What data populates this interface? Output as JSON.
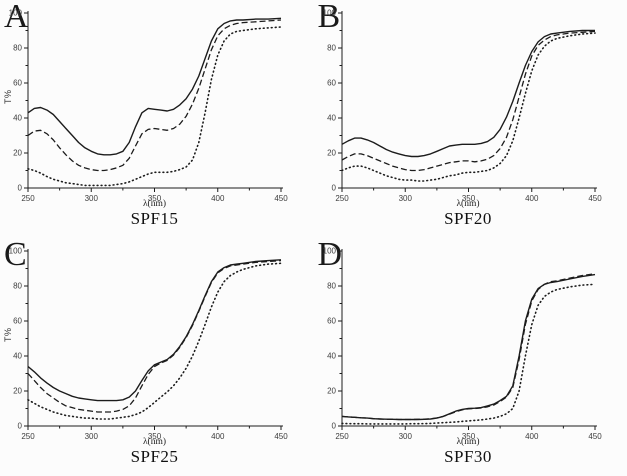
{
  "figure": {
    "background": "#fcfcfc",
    "line_color": "#1c1c1c",
    "text_color": "#3d3d3d"
  },
  "chart_data": [
    {
      "type": "line",
      "panel_label": "A",
      "caption": "SPF15",
      "xlabel": "λ(nm)",
      "ylabel": "T%",
      "xlim": [
        250,
        450
      ],
      "ylim": [
        0,
        100
      ],
      "xticks": [
        250,
        300,
        350,
        400,
        450
      ],
      "xticks_minor": [
        275,
        325,
        375,
        425
      ],
      "yticks": [
        0,
        20,
        40,
        60,
        80,
        100
      ],
      "yticks_minor": [
        10,
        30,
        50,
        70,
        90
      ],
      "grid": false,
      "legend": null,
      "x": [
        250,
        255,
        260,
        265,
        270,
        275,
        280,
        285,
        290,
        295,
        300,
        305,
        310,
        315,
        320,
        325,
        330,
        335,
        340,
        345,
        350,
        355,
        360,
        365,
        370,
        375,
        380,
        385,
        390,
        395,
        400,
        405,
        410,
        415,
        420,
        430,
        440,
        450
      ],
      "series": [
        {
          "name": "solid",
          "values": [
            43,
            45.5,
            46,
            44.5,
            42,
            38,
            34,
            30,
            26,
            23,
            21,
            19.5,
            19,
            19,
            19.5,
            21,
            26,
            35,
            43,
            45.5,
            45,
            44.5,
            44,
            45,
            47.5,
            51,
            56.5,
            64,
            74,
            84,
            91,
            94,
            95.5,
            96,
            96,
            96.5,
            96.5,
            97
          ]
        },
        {
          "name": "dashed",
          "values": [
            30,
            32.5,
            33,
            31,
            27.5,
            23,
            19,
            15.5,
            13,
            11.5,
            10.5,
            10,
            10,
            10.5,
            11.5,
            13,
            17,
            24,
            31,
            33.5,
            34,
            33.5,
            33,
            34,
            36.5,
            41,
            48,
            57,
            68,
            79,
            87,
            91,
            93,
            94,
            94.5,
            95,
            95.5,
            96
          ]
        },
        {
          "name": "dotted",
          "values": [
            11,
            10,
            8.5,
            6.5,
            5,
            4,
            3,
            2.5,
            2,
            1.5,
            1.5,
            1.5,
            1.5,
            1.5,
            2,
            2.5,
            3.5,
            5,
            6.5,
            8,
            9,
            9,
            9,
            9.5,
            10.5,
            12,
            16,
            26,
            43,
            62,
            76,
            84,
            88,
            89.5,
            90,
            91,
            91.5,
            92
          ]
        }
      ]
    },
    {
      "type": "line",
      "panel_label": "B",
      "caption": "SPF20",
      "xlabel": "λ(nm)",
      "ylabel": "",
      "xlim": [
        250,
        450
      ],
      "ylim": [
        0,
        100
      ],
      "xticks": [
        250,
        300,
        350,
        400,
        450
      ],
      "xticks_minor": [
        275,
        325,
        375,
        425
      ],
      "yticks": [
        0,
        20,
        40,
        60,
        80,
        100
      ],
      "yticks_minor": [
        10,
        30,
        50,
        70,
        90
      ],
      "grid": false,
      "legend": null,
      "x": [
        250,
        255,
        260,
        265,
        270,
        275,
        280,
        285,
        290,
        295,
        300,
        305,
        310,
        315,
        320,
        325,
        330,
        335,
        340,
        345,
        350,
        355,
        360,
        365,
        370,
        375,
        380,
        385,
        390,
        395,
        400,
        405,
        410,
        415,
        420,
        430,
        440,
        450
      ],
      "series": [
        {
          "name": "solid",
          "values": [
            25,
            27,
            28.5,
            28.5,
            27.5,
            26,
            24,
            22,
            20.5,
            19.5,
            18.5,
            18,
            18,
            18.5,
            19.5,
            21,
            22.5,
            24,
            24.5,
            25,
            25,
            25,
            25.5,
            26.5,
            29,
            33.5,
            40.5,
            49.5,
            60,
            70,
            78,
            83.5,
            86.5,
            88,
            88.5,
            89.5,
            90,
            90
          ]
        },
        {
          "name": "dashed",
          "values": [
            16,
            18,
            19.5,
            19.5,
            18.5,
            17,
            15.5,
            14,
            12.5,
            11.5,
            10.5,
            10,
            10,
            10.5,
            11.5,
            12.5,
            13.5,
            14.5,
            15,
            15.5,
            15.5,
            15,
            15.5,
            16.5,
            18.5,
            22.5,
            29,
            39,
            52,
            65,
            75.5,
            81.5,
            84.5,
            86.5,
            87.5,
            88.5,
            89,
            89.5
          ]
        },
        {
          "name": "dotted",
          "values": [
            10,
            11.5,
            12.5,
            12.5,
            11.5,
            10,
            8.5,
            7,
            6,
            5,
            4.5,
            4.5,
            4,
            4,
            4.5,
            5,
            6,
            7,
            7.5,
            8.5,
            9,
            9,
            9.5,
            10,
            11.5,
            14,
            18.5,
            27,
            40,
            54,
            67,
            76,
            81,
            84,
            85.5,
            87,
            88,
            88.5
          ]
        }
      ]
    },
    {
      "type": "line",
      "panel_label": "C",
      "caption": "SPF25",
      "xlabel": "λ(nm)",
      "ylabel": "T%",
      "xlim": [
        250,
        450
      ],
      "ylim": [
        0,
        100
      ],
      "xticks": [
        250,
        300,
        350,
        400,
        450
      ],
      "xticks_minor": [
        275,
        325,
        375,
        425
      ],
      "yticks": [
        0,
        20,
        40,
        60,
        80,
        100
      ],
      "yticks_minor": [
        10,
        30,
        50,
        70,
        90
      ],
      "grid": false,
      "legend": null,
      "x": [
        250,
        255,
        260,
        265,
        270,
        275,
        280,
        285,
        290,
        295,
        300,
        305,
        310,
        315,
        320,
        325,
        330,
        335,
        340,
        345,
        350,
        355,
        360,
        365,
        370,
        375,
        380,
        385,
        390,
        395,
        400,
        405,
        410,
        415,
        420,
        430,
        440,
        450
      ],
      "series": [
        {
          "name": "solid",
          "values": [
            34,
            31,
            27.5,
            24.5,
            22,
            20,
            18.5,
            17,
            16,
            15.5,
            15,
            14.5,
            14.5,
            14.5,
            14.5,
            15,
            16.5,
            20,
            26,
            31.5,
            35,
            36.5,
            38,
            41,
            45.5,
            51,
            58,
            66,
            74.5,
            82.5,
            88,
            90.5,
            92,
            92.5,
            93,
            94,
            94.5,
            95
          ]
        },
        {
          "name": "dashed",
          "values": [
            30,
            26,
            22,
            18.5,
            16,
            13.5,
            11.5,
            10.5,
            9.5,
            9,
            8.5,
            8,
            8,
            8,
            8.5,
            9.5,
            11.5,
            16,
            23,
            29.5,
            34,
            36,
            37.5,
            40.5,
            45,
            50.5,
            57.5,
            65.5,
            74,
            82,
            87.5,
            90,
            91.5,
            92,
            92.5,
            93.5,
            94,
            94.5
          ]
        },
        {
          "name": "dotted",
          "values": [
            15,
            13,
            11,
            9.5,
            8,
            7,
            6,
            5.5,
            5,
            4.5,
            4.5,
            4,
            4,
            4,
            4.5,
            5,
            5.5,
            6.5,
            8,
            10.5,
            13.5,
            16.5,
            19.5,
            23,
            27.5,
            33,
            40,
            48.5,
            58,
            68,
            76.5,
            82.5,
            86,
            88,
            89.5,
            91.5,
            92.5,
            93
          ]
        }
      ]
    },
    {
      "type": "line",
      "panel_label": "D",
      "caption": "SPF30",
      "xlabel": "λ(nm)",
      "ylabel": "",
      "xlim": [
        250,
        450
      ],
      "ylim": [
        0,
        100
      ],
      "xticks": [
        250,
        300,
        350,
        400,
        450
      ],
      "xticks_minor": [
        275,
        325,
        375,
        425
      ],
      "yticks": [
        0,
        20,
        40,
        60,
        80,
        100
      ],
      "yticks_minor": [
        10,
        30,
        50,
        70,
        90
      ],
      "grid": false,
      "legend": null,
      "x": [
        250,
        255,
        260,
        265,
        270,
        275,
        280,
        285,
        290,
        295,
        300,
        305,
        310,
        315,
        320,
        325,
        330,
        335,
        340,
        345,
        350,
        355,
        360,
        365,
        370,
        375,
        380,
        385,
        390,
        395,
        400,
        405,
        410,
        415,
        420,
        430,
        440,
        450
      ],
      "series": [
        {
          "name": "solid",
          "values": [
            5.5,
            5.2,
            5,
            4.7,
            4.5,
            4.2,
            4,
            3.9,
            3.8,
            3.7,
            3.7,
            3.7,
            3.7,
            3.8,
            4,
            4.5,
            5.5,
            7,
            8.5,
            9.5,
            10,
            10.2,
            10.5,
            11.5,
            12.5,
            14.5,
            17,
            23,
            40,
            60,
            72.5,
            78.5,
            81,
            82,
            82.5,
            84,
            85.5,
            86.5
          ]
        },
        {
          "name": "dashed",
          "values": [
            5.5,
            5.2,
            5,
            4.7,
            4.5,
            4.2,
            4,
            3.9,
            3.8,
            3.7,
            3.7,
            3.7,
            3.8,
            3.9,
            4.1,
            4.6,
            5.5,
            6.8,
            8.2,
            9.2,
            9.8,
            10,
            10.3,
            11,
            12,
            14,
            16.5,
            22,
            38,
            58,
            71.5,
            78,
            81,
            82.5,
            83,
            84.5,
            86,
            87
          ]
        },
        {
          "name": "dotted",
          "values": [
            1.5,
            1.4,
            1.3,
            1.3,
            1.2,
            1.2,
            1.2,
            1.2,
            1.2,
            1.2,
            1.2,
            1.3,
            1.3,
            1.4,
            1.5,
            1.7,
            1.9,
            2.1,
            2.3,
            2.6,
            2.9,
            3.2,
            3.5,
            4,
            4.5,
            5.5,
            7,
            10,
            20,
            40,
            58,
            69,
            74,
            76.5,
            78,
            79.5,
            80.5,
            81
          ]
        }
      ]
    }
  ]
}
